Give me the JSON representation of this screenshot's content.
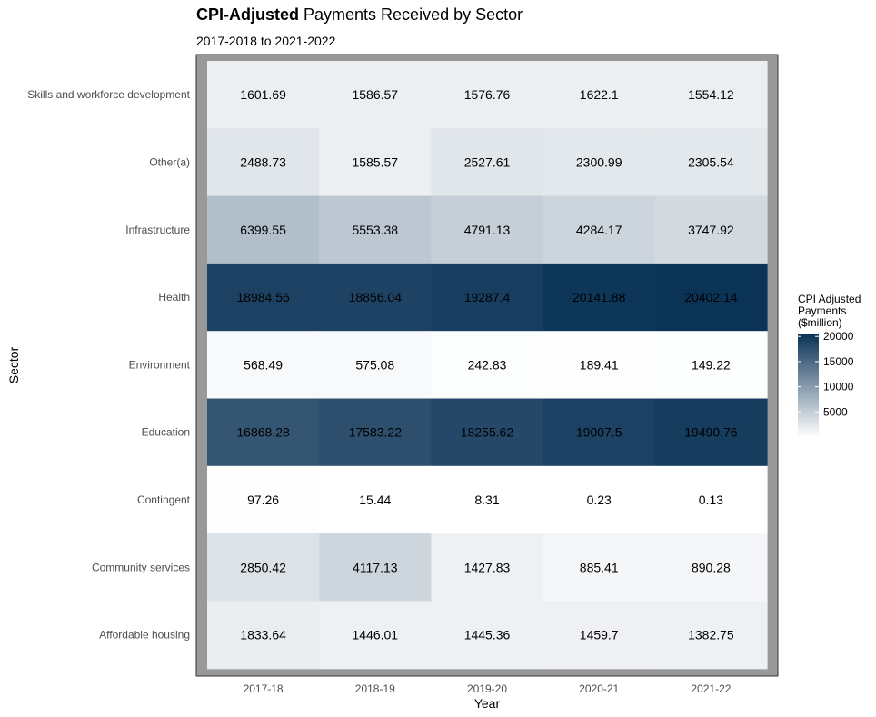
{
  "title_bold": "CPI-Adjusted",
  "title_rest": " Payments Received by Sector",
  "subtitle": "2017-2018 to 2021-2022",
  "chart_data": {
    "type": "heatmap",
    "xlabel": "Year",
    "ylabel": "Sector",
    "x": [
      "2017-18",
      "2018-19",
      "2019-20",
      "2020-21",
      "2021-22"
    ],
    "y": [
      "Skills and workforce development",
      "Other(a)",
      "Infrastructure",
      "Health",
      "Environment",
      "Education",
      "Contingent",
      "Community services",
      "Affordable housing"
    ],
    "values": [
      [
        "1601.69",
        "1586.57",
        "1576.76",
        "1622.1",
        "1554.12"
      ],
      [
        "2488.73",
        "1585.57",
        "2527.61",
        "2300.99",
        "2305.54"
      ],
      [
        "6399.55",
        "5553.38",
        "4791.13",
        "4284.17",
        "3747.92"
      ],
      [
        "18984.56",
        "18856.04",
        "19287.4",
        "20141.88",
        "20402.14"
      ],
      [
        "568.49",
        "575.08",
        "242.83",
        "189.41",
        "149.22"
      ],
      [
        "16868.28",
        "17583.22",
        "18255.62",
        "19007.5",
        "19490.76"
      ],
      [
        "97.26",
        "15.44",
        "8.31",
        "0.23",
        "0.13"
      ],
      [
        "2850.42",
        "4117.13",
        "1427.83",
        "885.41",
        "890.28"
      ],
      [
        "1833.64",
        "1446.01",
        "1445.36",
        "1459.7",
        "1382.75"
      ]
    ],
    "legend": {
      "title": [
        "CPI Adjusted",
        "Payments",
        "($million)"
      ],
      "ticks": [
        5000,
        10000,
        15000,
        20000
      ],
      "min": 0,
      "max": 20402.14,
      "placement": "right"
    },
    "colors": {
      "low": "#ffffff",
      "high": "#0b3356",
      "panel_border": "#999999"
    }
  }
}
